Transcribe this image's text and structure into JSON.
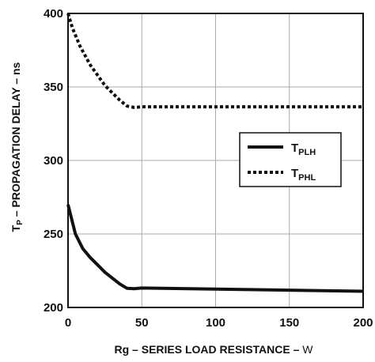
{
  "chart_data": {
    "type": "line",
    "xlabel": {
      "main": "Rg – SERIES LOAD RESISTANCE – ",
      "unit": "W"
    },
    "ylabel": {
      "base": "T",
      "sub": "P",
      "rest": " – PROPAGATION DELAY – ns"
    },
    "xlim": [
      0,
      200
    ],
    "ylim": [
      200,
      400
    ],
    "xticks": [
      "0",
      "50",
      "100",
      "150",
      "200"
    ],
    "yticks": [
      "200",
      "250",
      "300",
      "350",
      "400"
    ],
    "grid": true,
    "legend_position": "right-middle",
    "series": [
      {
        "name": "T_PLH",
        "label_base": "T",
        "label_sub": "PLH",
        "style": "solid",
        "color": "#111111",
        "points": [
          [
            0,
            270
          ],
          [
            2,
            262
          ],
          [
            5,
            250
          ],
          [
            10,
            240
          ],
          [
            15,
            234
          ],
          [
            20,
            229
          ],
          [
            25,
            224
          ],
          [
            30,
            220
          ],
          [
            35,
            216
          ],
          [
            40,
            213
          ],
          [
            45,
            212.8
          ],
          [
            50,
            213.2
          ],
          [
            100,
            212.5
          ],
          [
            150,
            211.8
          ],
          [
            200,
            211
          ]
        ]
      },
      {
        "name": "T_PHL",
        "label_base": "T",
        "label_sub": "PHL",
        "style": "dotted",
        "color": "#111111",
        "points": [
          [
            0,
            400
          ],
          [
            3,
            390
          ],
          [
            8,
            378
          ],
          [
            15,
            365
          ],
          [
            20,
            358
          ],
          [
            25,
            351
          ],
          [
            30,
            346
          ],
          [
            35,
            341
          ],
          [
            40,
            337
          ],
          [
            45,
            336
          ],
          [
            50,
            336.5
          ],
          [
            100,
            336.5
          ],
          [
            150,
            336.5
          ],
          [
            200,
            336.5
          ]
        ]
      }
    ]
  }
}
